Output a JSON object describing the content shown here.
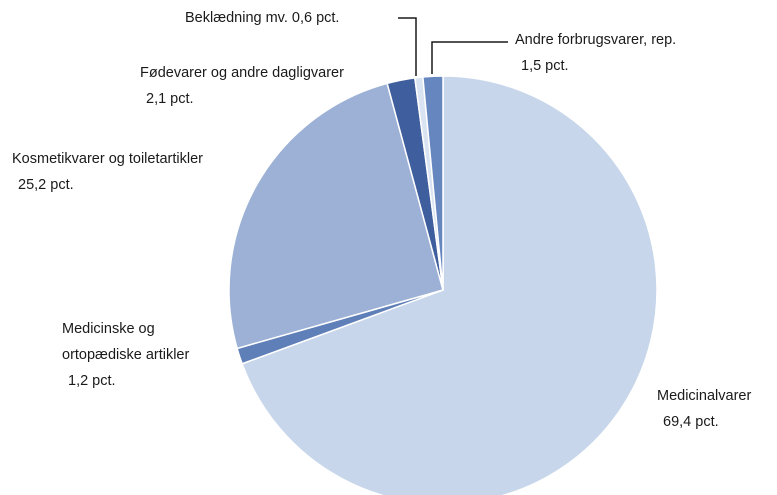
{
  "chart_data": {
    "type": "pie",
    "categories": [
      "Medicinalvarer",
      "Medicinske og ortopædiske artikler",
      "Kosmetikvarer og toiletartikler",
      "Fødevarer og andre dagligvarer",
      "Beklædning mv.",
      "Andre forbrugsvarer, rep."
    ],
    "values": [
      69.4,
      1.2,
      25.2,
      2.1,
      0.6,
      1.5
    ],
    "value_labels": [
      "69,4 pct.",
      "1,2 pct.",
      "25,2 pct.",
      "2,1 pct.",
      "0,6 pct.",
      "1,5 pct."
    ],
    "colors": [
      "#c7d6ea",
      "#5f7fb8",
      "#9cb1d5",
      "#3f5e9d",
      "#d9e3f1",
      "#6686c0"
    ]
  }
}
